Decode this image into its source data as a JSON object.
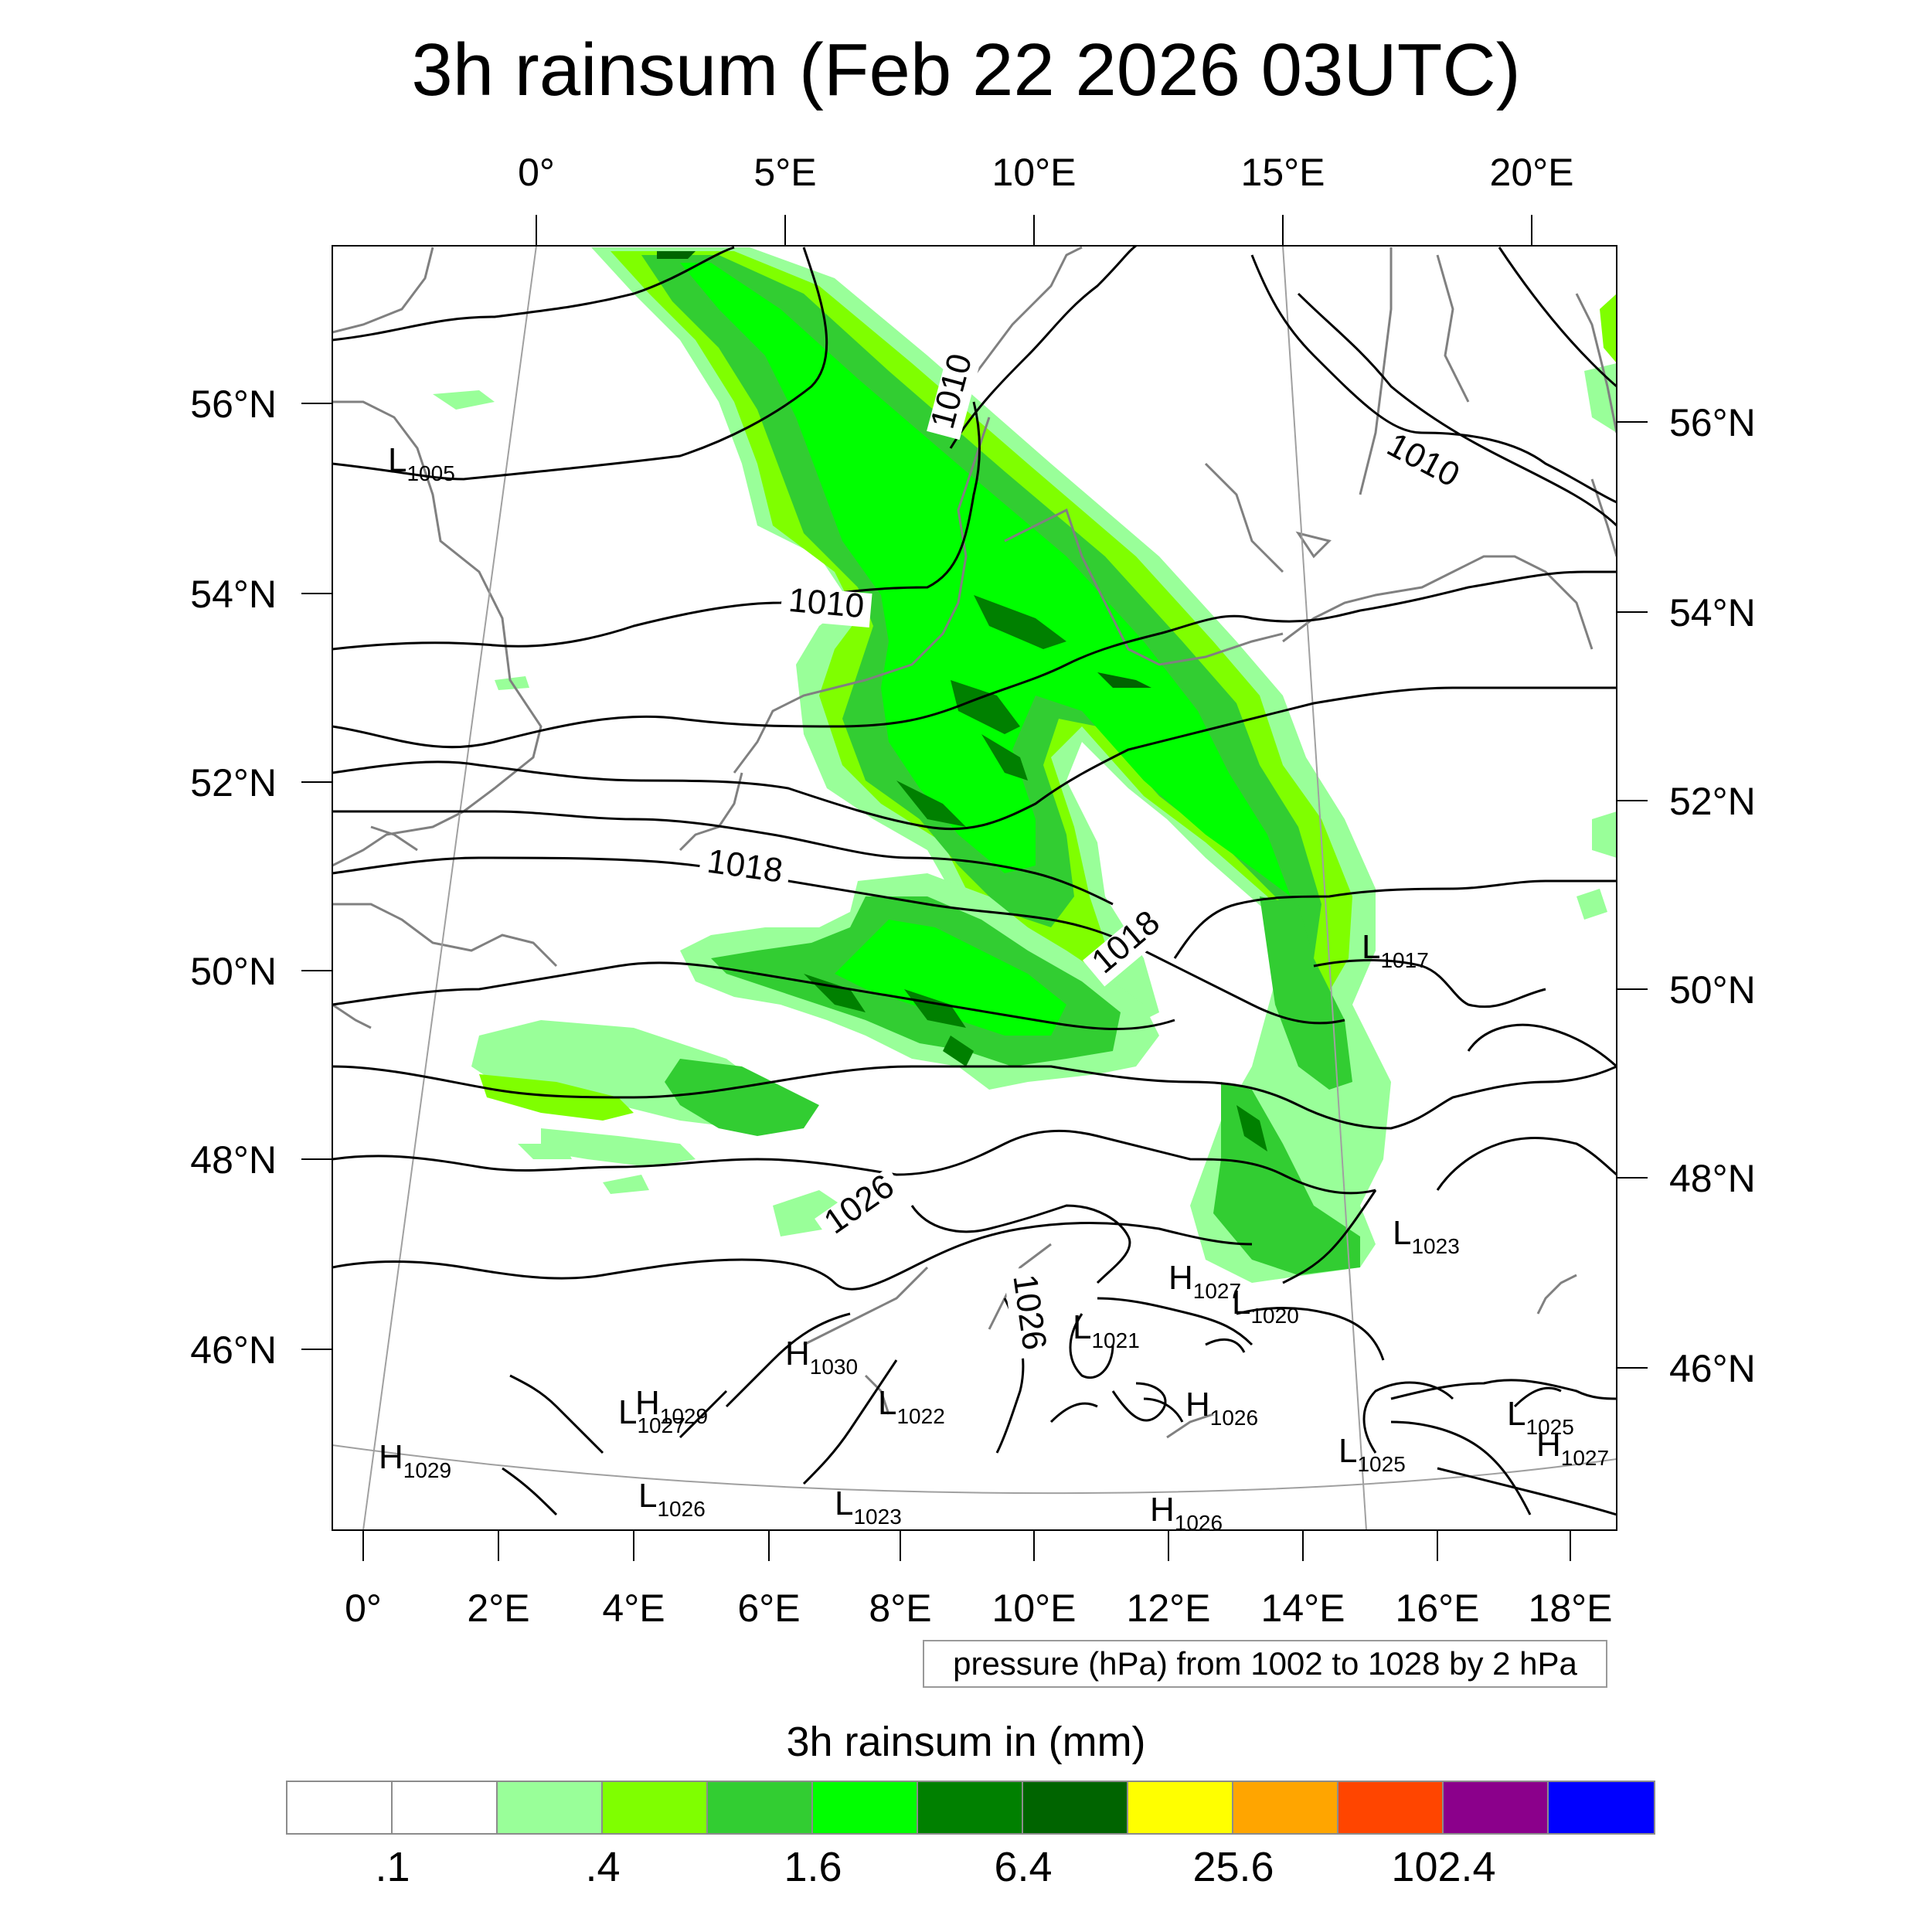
{
  "title": "3h rainsum (Feb 22 2026 03UTC)",
  "contour_info": "pressure (hPa) from 1002 to 1028 by 2 hPa",
  "colorbar": {
    "title": "3h rainsum in (mm)",
    "bins": [
      "#ffffff",
      "#ffffff",
      "#99ff99",
      "#7fff00",
      "#32cd32",
      "#00ff00",
      "#008000",
      "#006400",
      "#ffff00",
      "#ffa500",
      "#ff4500",
      "#8b008b",
      "#0000ff"
    ],
    "labels": [
      {
        "text": ".1",
        "edge": 1
      },
      {
        "text": ".4",
        "edge": 3
      },
      {
        "text": "1.6",
        "edge": 5
      },
      {
        "text": "6.4",
        "edge": 7
      },
      {
        "text": "25.6",
        "edge": 9
      },
      {
        "text": "102.4",
        "edge": 11
      }
    ]
  },
  "axes": {
    "top_lon_labels": [
      "0°",
      "5°E",
      "10°E",
      "15°E",
      "20°E"
    ],
    "bottom_lon_labels": [
      "0°",
      "2°E",
      "4°E",
      "6°E",
      "8°E",
      "10°E",
      "12°E",
      "14°E",
      "16°E",
      "18°E"
    ],
    "left_lat_labels": [
      "56°N",
      "54°N",
      "52°N",
      "50°N",
      "48°N",
      "46°N"
    ],
    "right_lat_labels": [
      "56°N",
      "54°N",
      "52°N",
      "50°N",
      "48°N",
      "46°N"
    ]
  },
  "isobar_labels": [
    {
      "text": "1010",
      "rot": -75
    },
    {
      "text": "1010",
      "rot": 28
    },
    {
      "text": "1010",
      "rot": 5
    },
    {
      "text": "1018",
      "rot": 8
    },
    {
      "text": "1018",
      "rot": -40
    },
    {
      "text": "1026",
      "rot": -35
    },
    {
      "text": "1026",
      "rot": 82
    }
  ],
  "pressure_centers": [
    {
      "letter": "L",
      "value": "1005"
    },
    {
      "letter": "L",
      "value": "1017"
    },
    {
      "letter": "L",
      "value": "1023"
    },
    {
      "letter": "H",
      "value": "1027"
    },
    {
      "letter": "L",
      "value": "1020"
    },
    {
      "letter": "L",
      "value": "1021"
    },
    {
      "letter": "H",
      "value": "1030"
    },
    {
      "letter": "L",
      "value": "1027"
    },
    {
      "letter": "H",
      "value": "1029"
    },
    {
      "letter": "L",
      "value": "1022"
    },
    {
      "letter": "H",
      "value": "1026"
    },
    {
      "letter": "L",
      "value": "1025"
    },
    {
      "letter": "H",
      "value": "1029"
    },
    {
      "letter": "L",
      "value": "1025"
    },
    {
      "letter": "H",
      "value": "1027"
    },
    {
      "letter": "L",
      "value": "1026"
    },
    {
      "letter": "L",
      "value": "1023"
    },
    {
      "letter": "H",
      "value": "1026"
    }
  ],
  "colors": {
    "coast": "#808080",
    "isobar": "#000000",
    "gridline": "#a0a0a0"
  }
}
